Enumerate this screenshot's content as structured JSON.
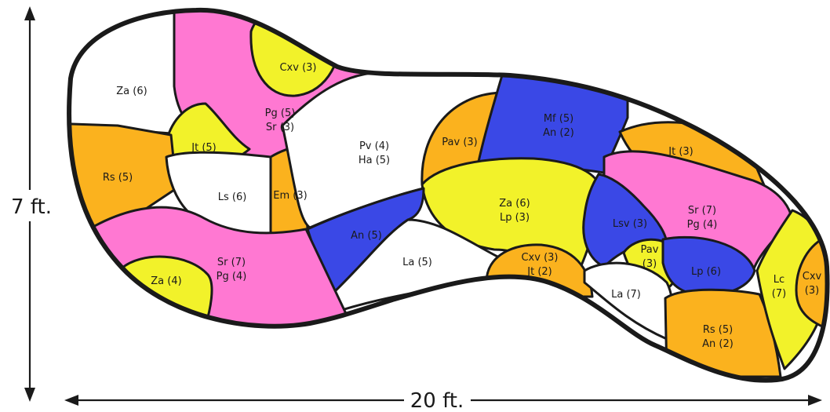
{
  "colors": {
    "white": "#ffffff",
    "pink": "#ff78d2",
    "yellow": "#f2f22a",
    "orange": "#fbb21e",
    "blue": "#3a48e6",
    "outline": "#1a1a1a"
  },
  "dimensions": {
    "height_label": "7 ft.",
    "width_label": "20 ft."
  },
  "regions": [
    {
      "id": "za-6-top",
      "color": "white",
      "lines": [
        "Za (6)"
      ]
    },
    {
      "id": "pg-sr-top",
      "color": "pink",
      "lines": [
        "Pg (5)",
        "Sr (3)"
      ]
    },
    {
      "id": "cxv-3-top",
      "color": "yellow",
      "lines": [
        "Cxv (3)"
      ]
    },
    {
      "id": "jt-5",
      "color": "yellow",
      "lines": [
        "Jt (5)"
      ]
    },
    {
      "id": "rs-5-left",
      "color": "orange",
      "lines": [
        "Rs (5)"
      ]
    },
    {
      "id": "ls-6",
      "color": "white",
      "lines": [
        "Ls (6)"
      ]
    },
    {
      "id": "em-3",
      "color": "orange",
      "lines": [
        "Em (3)"
      ]
    },
    {
      "id": "pv-ha",
      "color": "white",
      "lines": [
        "Pv (4)",
        "Ha (5)"
      ]
    },
    {
      "id": "pav-3-top",
      "color": "orange",
      "lines": [
        "Pav (3)"
      ]
    },
    {
      "id": "mf-an",
      "color": "blue",
      "lines": [
        "Mf (5)",
        "An (2)"
      ]
    },
    {
      "id": "jt-3",
      "color": "orange",
      "lines": [
        "Jt (3)"
      ]
    },
    {
      "id": "sr-pg-right",
      "color": "pink",
      "lines": [
        "Sr (7)",
        "Pg (4)"
      ]
    },
    {
      "id": "za-lp",
      "color": "yellow",
      "lines": [
        "Za (6)",
        "Lp (3)"
      ]
    },
    {
      "id": "an-5",
      "color": "blue",
      "lines": [
        "An (5)"
      ]
    },
    {
      "id": "la-5",
      "color": "white",
      "lines": [
        "La (5)"
      ]
    },
    {
      "id": "sr-pg-left",
      "color": "pink",
      "lines": [
        "Sr (7)",
        "Pg (4)"
      ]
    },
    {
      "id": "za-4",
      "color": "yellow",
      "lines": [
        "Za (4)"
      ]
    },
    {
      "id": "cxv-jt",
      "color": "orange",
      "lines": [
        "Cxv (3)",
        "Jt (2)"
      ]
    },
    {
      "id": "lsv-3",
      "color": "blue",
      "lines": [
        "Lsv (3)"
      ]
    },
    {
      "id": "pav-3-small",
      "color": "yellow",
      "lines": [
        "Pav",
        "(3)"
      ]
    },
    {
      "id": "lp-6",
      "color": "blue",
      "lines": [
        "Lp (6)"
      ]
    },
    {
      "id": "la-7",
      "color": "white",
      "lines": [
        "La (7)"
      ]
    },
    {
      "id": "rs-an",
      "color": "orange",
      "lines": [
        "Rs (5)",
        "An (2)"
      ]
    },
    {
      "id": "lc-7",
      "color": "yellow",
      "lines": [
        "Lc",
        "(7)"
      ]
    },
    {
      "id": "cxv-3-right",
      "color": "orange",
      "lines": [
        "Cxv",
        "(3)"
      ]
    }
  ]
}
